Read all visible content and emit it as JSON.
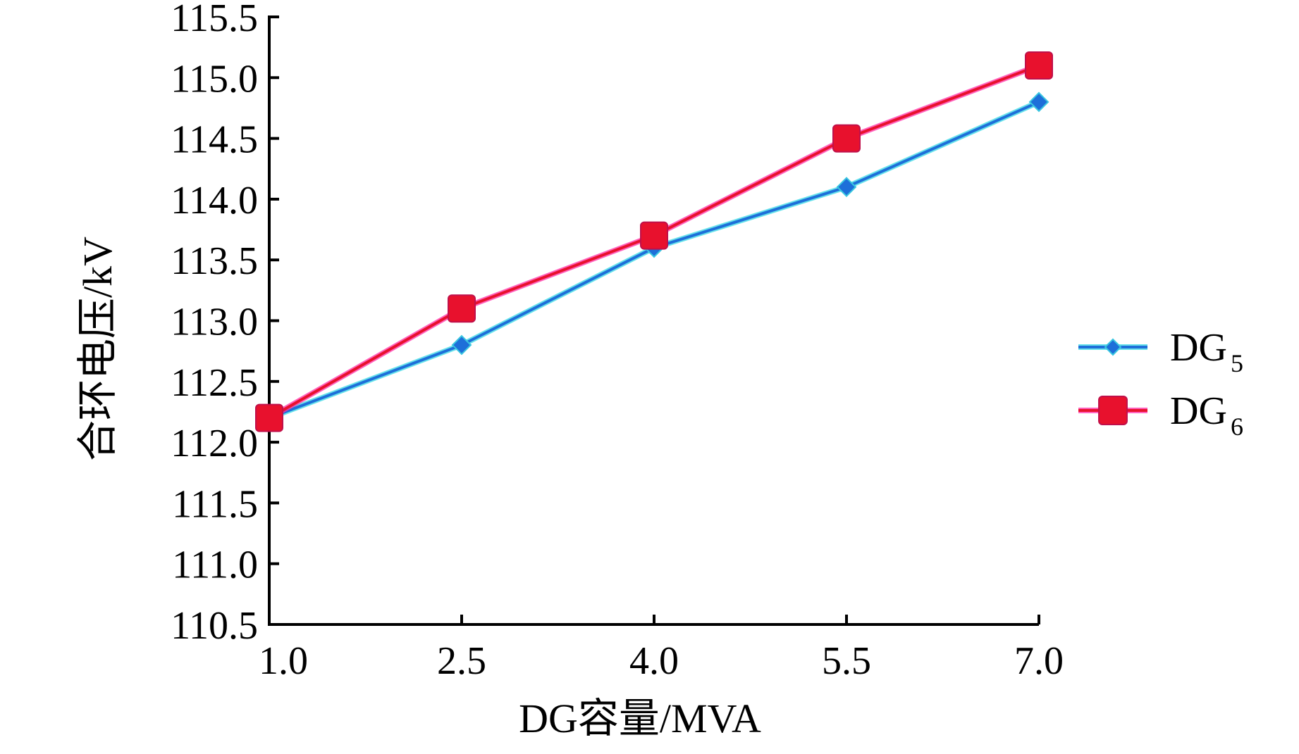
{
  "chart_data": {
    "type": "line",
    "title": "",
    "xlabel": "DG容量/MVA",
    "ylabel": "合环电压/kV",
    "x": [
      1.0,
      2.5,
      4.0,
      5.5,
      7.0
    ],
    "x_tick_labels": [
      "1.0",
      "2.5",
      "4.0",
      "5.5",
      "7.0"
    ],
    "y_tick_labels": [
      "110.5",
      "111.0",
      "111.5",
      "112.0",
      "112.5",
      "113.0",
      "113.5",
      "114.0",
      "114.5",
      "115.0",
      "115.5"
    ],
    "xlim": [
      1.0,
      7.0
    ],
    "ylim": [
      110.5,
      115.5
    ],
    "grid": false,
    "legend_position": "right",
    "series": [
      {
        "name": "DG5",
        "label_main": "DG",
        "label_sub": "5",
        "values": [
          112.2,
          112.8,
          113.6,
          114.1,
          114.8
        ],
        "color": "#1e6fd9",
        "marker": "diamond"
      },
      {
        "name": "DG6",
        "label_main": "DG",
        "label_sub": "6",
        "values": [
          112.2,
          113.1,
          113.7,
          114.5,
          115.1
        ],
        "color": "#e8112d",
        "marker": "square"
      }
    ]
  }
}
